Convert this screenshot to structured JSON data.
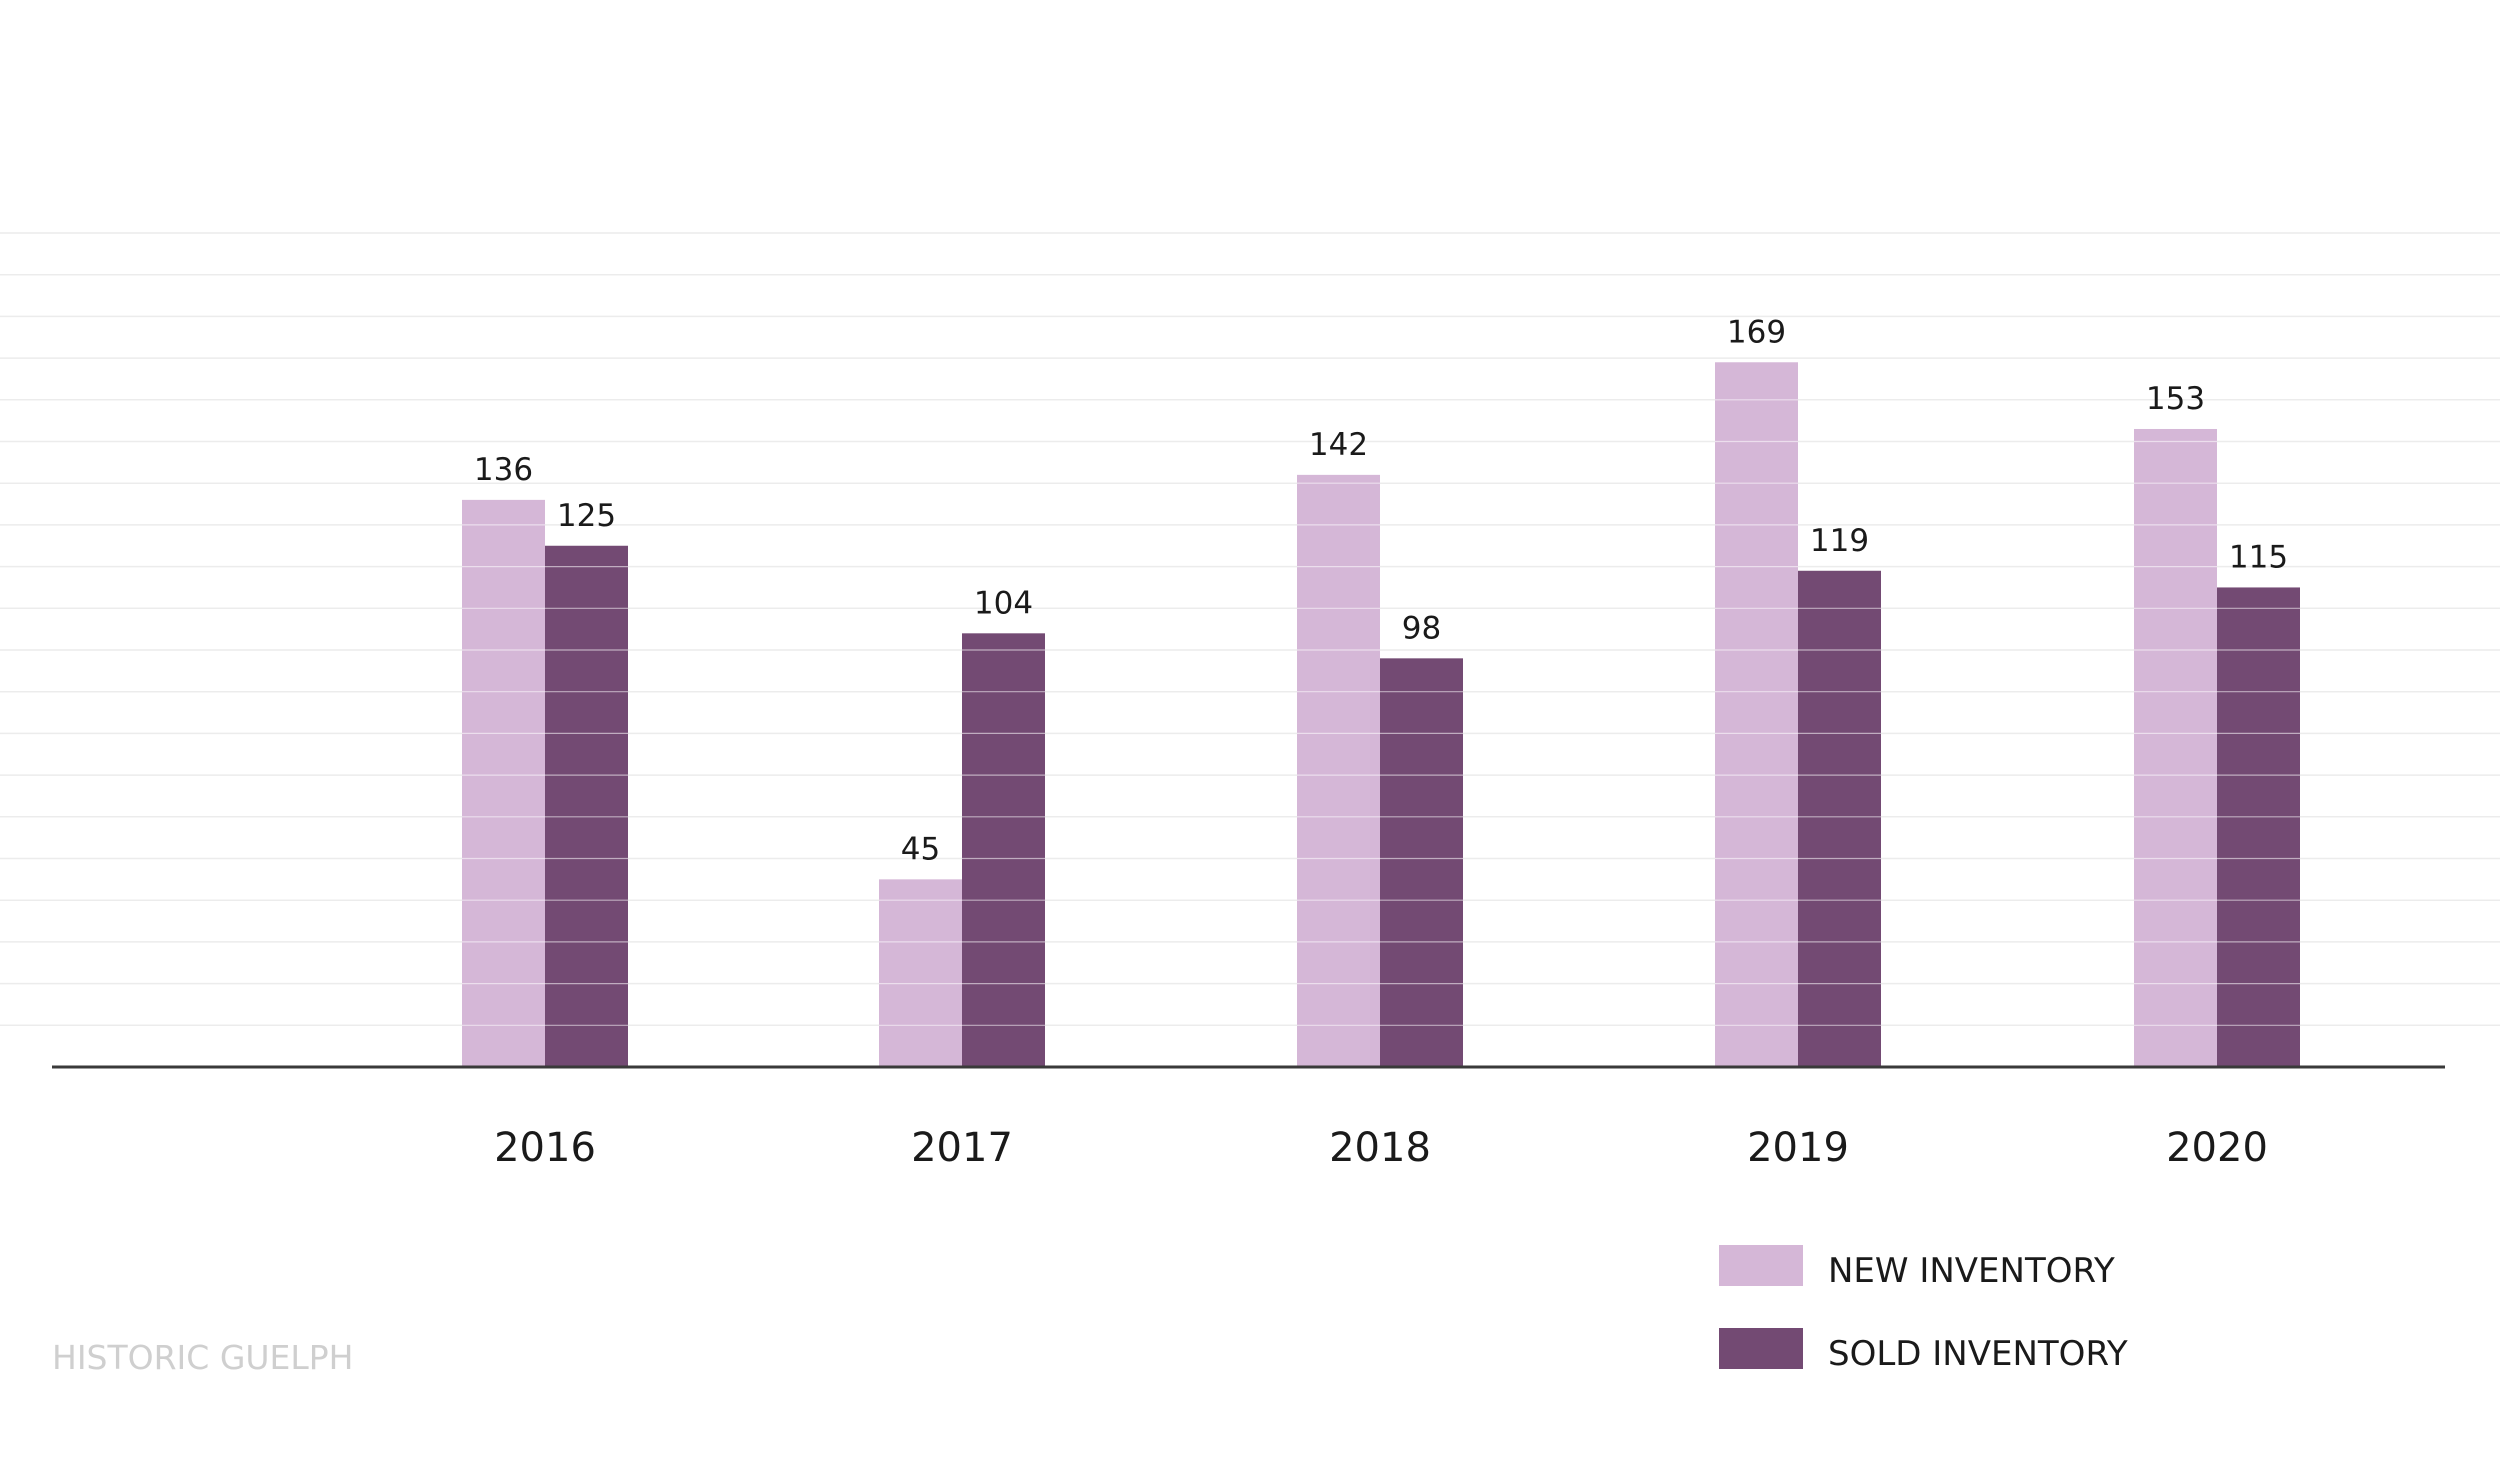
{
  "chart_data": {
    "type": "bar",
    "categories": [
      "2016",
      "2017",
      "2018",
      "2019",
      "2020"
    ],
    "series": [
      {
        "name": "NEW INVENTORY",
        "values": [
          136,
          45,
          142,
          169,
          153
        ],
        "color": "#d5b7d7"
      },
      {
        "name": "SOLD INVENTORY",
        "values": [
          125,
          104,
          98,
          119,
          115
        ],
        "color": "#734a73"
      }
    ],
    "title": "",
    "xlabel": "",
    "ylabel": "",
    "ylim": [
      0,
      200
    ],
    "grid": true,
    "legend_position": "bottom-right",
    "data_labels": true
  },
  "footer": {
    "source_label": "HISTORIC GUELPH"
  },
  "colors": {
    "axis": "#3a3a3a",
    "grid": "#ececec",
    "bar_gridline": "#ffffff"
  }
}
